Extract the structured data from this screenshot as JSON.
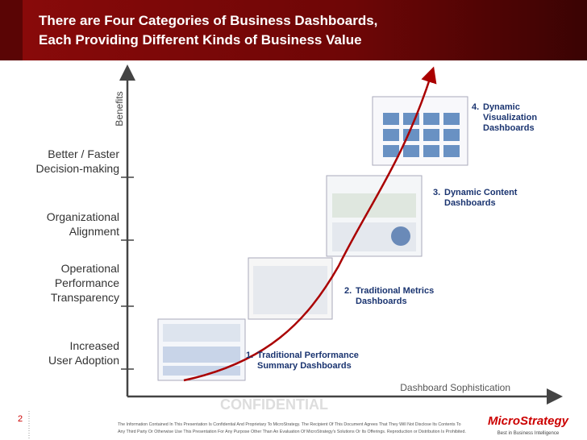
{
  "header": {
    "title_lines": [
      "There are Four Categories of Business Dashboards,",
      "Each Providing Different Kinds of Business Value"
    ]
  },
  "y_axis": {
    "label": "Benefits",
    "levels": [
      {
        "lines": [
          "Better / Faster",
          "Decision-making"
        ]
      },
      {
        "lines": [
          "Organizational",
          "Alignment"
        ]
      },
      {
        "lines": [
          "Operational",
          "Performance",
          "Transparency"
        ]
      },
      {
        "lines": [
          "Increased",
          "User Adoption"
        ]
      }
    ]
  },
  "x_axis": {
    "label": "Dashboard Sophistication"
  },
  "categories": [
    {
      "number": "1.",
      "lines": [
        "Traditional Performance",
        "Summary  Dashboards"
      ]
    },
    {
      "number": "2.",
      "lines": [
        "Traditional Metrics",
        "Dashboards"
      ]
    },
    {
      "number": "3.",
      "lines": [
        "Dynamic Content",
        "Dashboards"
      ]
    },
    {
      "number": "4.",
      "lines": [
        "Dynamic",
        "Visualization",
        "Dashboards"
      ]
    }
  ],
  "footer": {
    "page_number": "2",
    "watermark": "CONFIDENTIAL",
    "disclaimer_lines": [
      "The Information Contained In This Presentation Is Confidential And Proprietary To MicroStrategy. The Recipient Of This Document Agrees That They Will Not Disclose Its Contents To",
      "Any Third Party Or Otherwise Use This Presentation For Any Purpose Other Than An Evaluation Of MicroStrategy's Solutions Or Its Offerings. Reproduction or Distribution Is Prohibited."
    ],
    "logo": "MicroStrategy",
    "tagline": "Best in Business Intelligence"
  }
}
